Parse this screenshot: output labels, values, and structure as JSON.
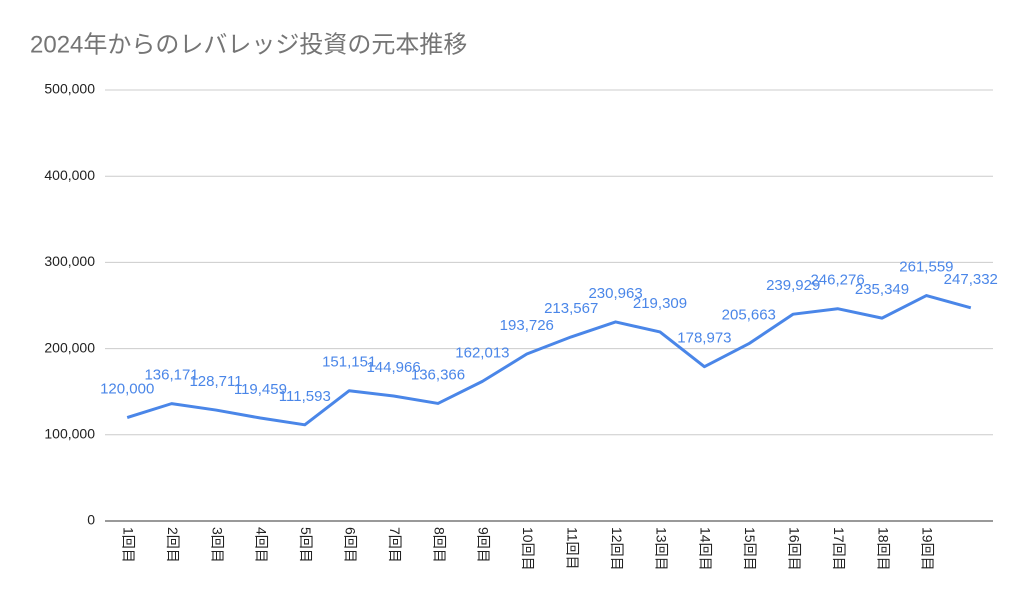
{
  "chart_data": {
    "type": "line",
    "title": "2024年からのレバレッジ投資の元本推移",
    "categories": [
      "1回目",
      "2回目",
      "3回目",
      "4回目",
      "5回目",
      "6回目",
      "7回目",
      "8回目",
      "9回目",
      "10回目",
      "11回目",
      "12回目",
      "13回目",
      "14回目",
      "15回目",
      "16回目",
      "17回目",
      "18回目",
      "19回目",
      null
    ],
    "values": [
      120000,
      136171,
      128711,
      119459,
      111593,
      151151,
      144966,
      136366,
      162013,
      193726,
      213567,
      230963,
      219309,
      178973,
      205663,
      239929,
      246276,
      235349,
      261559,
      247332
    ],
    "value_labels": [
      "120,000",
      "136,171",
      "128,711",
      "119,459",
      "111,593",
      "151,151",
      "144,966",
      "136,366",
      "162,013",
      "193,726",
      "213,567",
      "230,963",
      "219,309",
      "178,973",
      "205,663",
      "239,929",
      "246,276",
      "235,349",
      "261,559",
      "247,332"
    ],
    "color": "#4a86e8",
    "ylim": [
      0,
      500000
    ],
    "yticks": [
      0,
      {
        "value": 100000,
        "label": "100,000"
      },
      {
        "value": 200000,
        "label": "200,000"
      },
      {
        "value": 300000,
        "label": "300,000"
      },
      {
        "value": 400000,
        "label": "400,000"
      },
      {
        "value": 500000,
        "label": "500,000"
      }
    ],
    "grid": true
  }
}
